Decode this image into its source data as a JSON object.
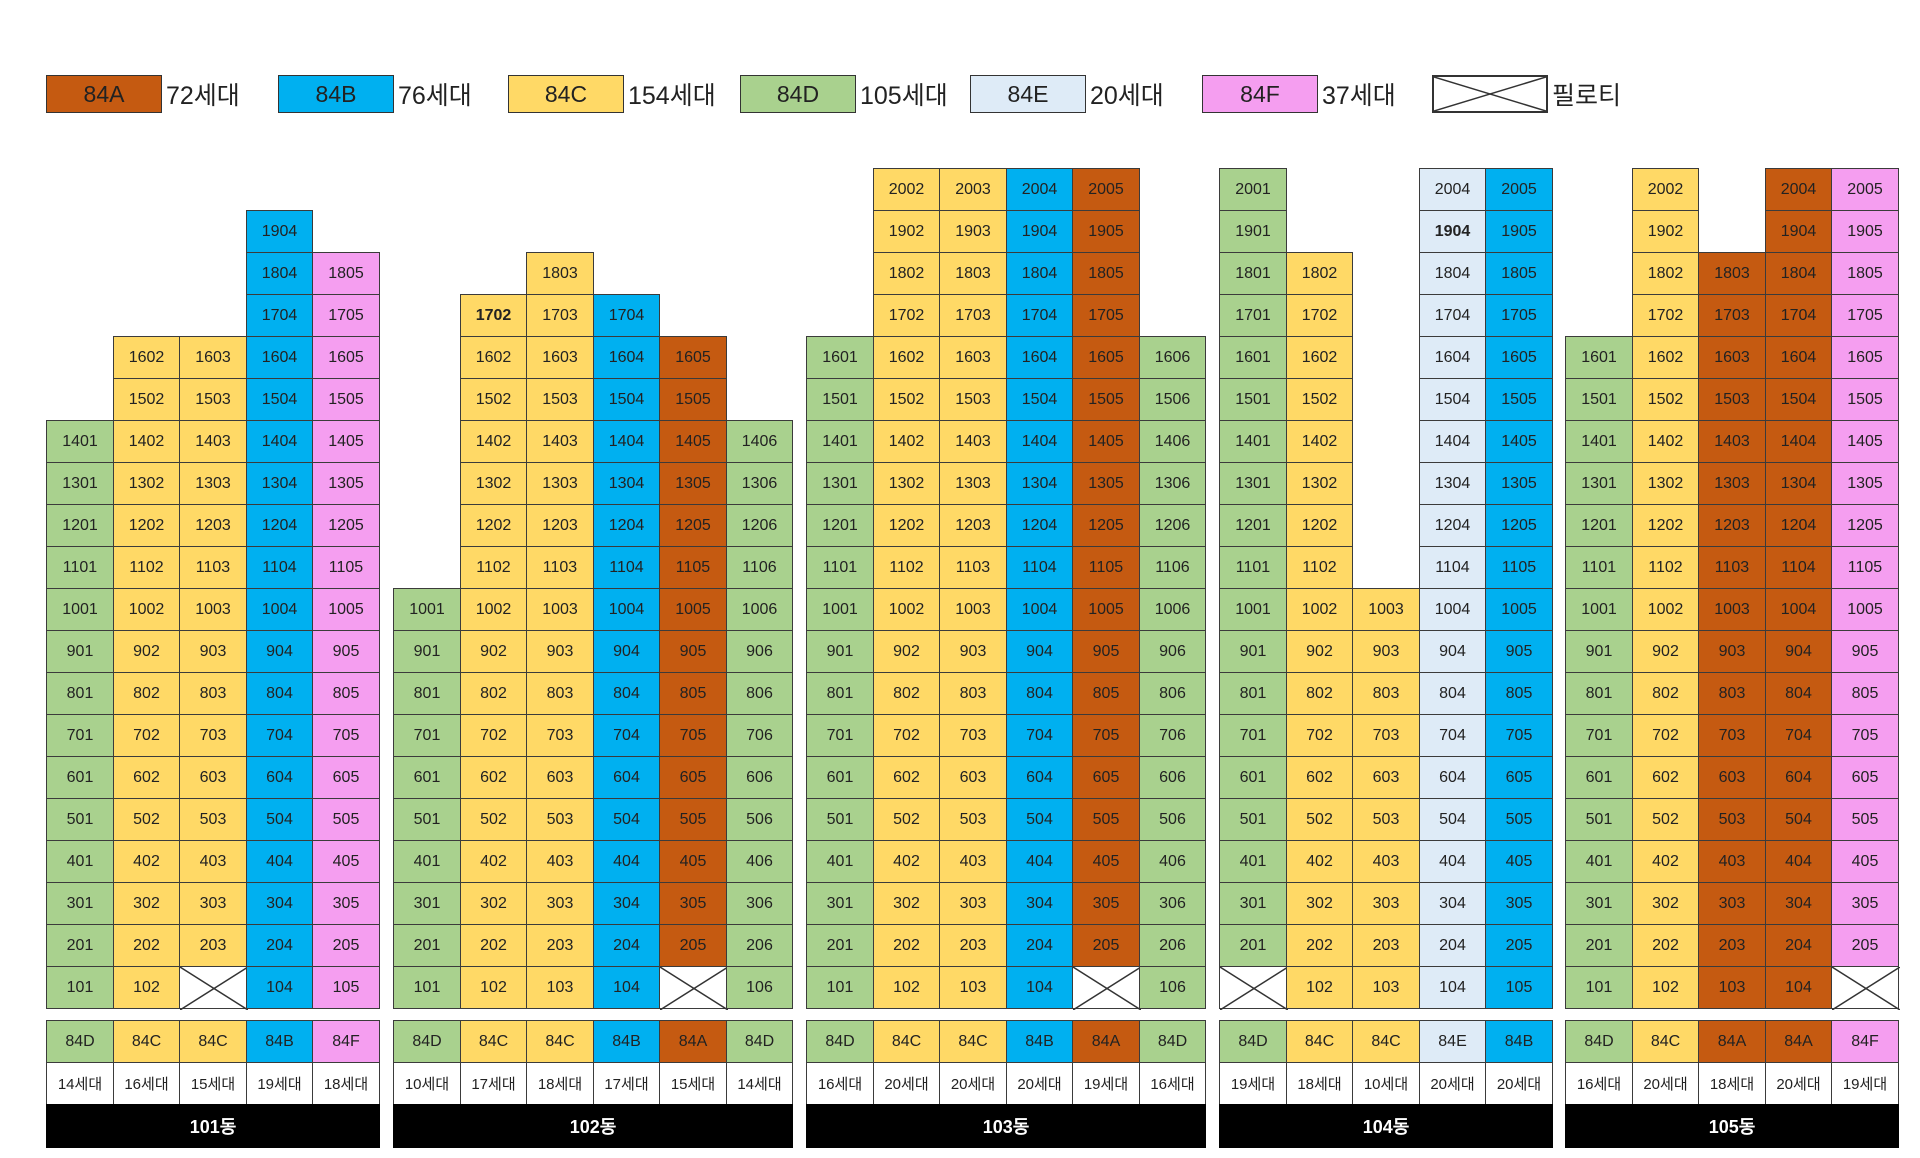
{
  "legend": [
    {
      "type": "84A",
      "count": "72세대"
    },
    {
      "type": "84B",
      "count": "76세대"
    },
    {
      "type": "84C",
      "count": "154세대"
    },
    {
      "type": "84D",
      "count": "105세대"
    },
    {
      "type": "84E",
      "count": "20세대"
    },
    {
      "type": "84F",
      "count": "37세대"
    }
  ],
  "pilotis_label": "필로티",
  "colors": {
    "84A": "#c55a11",
    "84B": "#00b0f0",
    "84C": "#ffd966",
    "84D": "#a9d18e",
    "84E": "#deebf7",
    "84F": "#f59ef0"
  },
  "buildings": [
    {
      "name": "101동",
      "lines": [
        {
          "type": "84D",
          "count": "14세대",
          "top": 14,
          "pilotis": []
        },
        {
          "type": "84C",
          "count": "16세대",
          "top": 16,
          "pilotis": []
        },
        {
          "type": "84C",
          "count": "15세대",
          "top": 16,
          "pilotis": [
            1
          ]
        },
        {
          "type": "84B",
          "count": "19세대",
          "top": 19,
          "pilotis": []
        },
        {
          "type": "84F",
          "count": "18세대",
          "top": 18,
          "pilotis": []
        }
      ]
    },
    {
      "name": "102동",
      "lines": [
        {
          "type": "84D",
          "count": "10세대",
          "top": 10,
          "pilotis": []
        },
        {
          "type": "84C",
          "count": "17세대",
          "top": 17,
          "pilotis": []
        },
        {
          "type": "84C",
          "count": "18세대",
          "top": 18,
          "pilotis": []
        },
        {
          "type": "84B",
          "count": "17세대",
          "top": 17,
          "pilotis": []
        },
        {
          "type": "84A",
          "count": "15세대",
          "top": 16,
          "pilotis": [
            1
          ]
        },
        {
          "type": "84D",
          "count": "14세대",
          "top": 14,
          "pilotis": []
        }
      ]
    },
    {
      "name": "103동",
      "lines": [
        {
          "type": "84D",
          "count": "16세대",
          "top": 16,
          "pilotis": []
        },
        {
          "type": "84C",
          "count": "20세대",
          "top": 20,
          "pilotis": []
        },
        {
          "type": "84C",
          "count": "20세대",
          "top": 20,
          "pilotis": []
        },
        {
          "type": "84B",
          "count": "20세대",
          "top": 20,
          "pilotis": []
        },
        {
          "type": "84A",
          "count": "19세대",
          "top": 20,
          "pilotis": [
            1
          ]
        },
        {
          "type": "84D",
          "count": "16세대",
          "top": 16,
          "pilotis": []
        }
      ]
    },
    {
      "name": "104동",
      "lines": [
        {
          "type": "84D",
          "count": "19세대",
          "top": 20,
          "pilotis": [
            1
          ]
        },
        {
          "type": "84C",
          "count": "18세대",
          "top": 18,
          "pilotis": []
        },
        {
          "type": "84C",
          "count": "10세대",
          "top": 10,
          "pilotis": []
        },
        {
          "type": "84E",
          "count": "20세대",
          "top": 20,
          "pilotis": []
        },
        {
          "type": "84B",
          "count": "20세대",
          "top": 20,
          "pilotis": []
        }
      ]
    },
    {
      "name": "105동",
      "lines": [
        {
          "type": "84D",
          "count": "16세대",
          "top": 16,
          "pilotis": []
        },
        {
          "type": "84C",
          "count": "20세대",
          "top": 20,
          "pilotis": []
        },
        {
          "type": "84A",
          "count": "18세대",
          "top": 18,
          "pilotis": []
        },
        {
          "type": "84A",
          "count": "20세대",
          "top": 20,
          "pilotis": []
        },
        {
          "type": "84F",
          "count": "19세대",
          "top": 20,
          "pilotis": [
            1
          ]
        }
      ]
    }
  ],
  "bold_units": [
    "1904",
    "1702"
  ]
}
